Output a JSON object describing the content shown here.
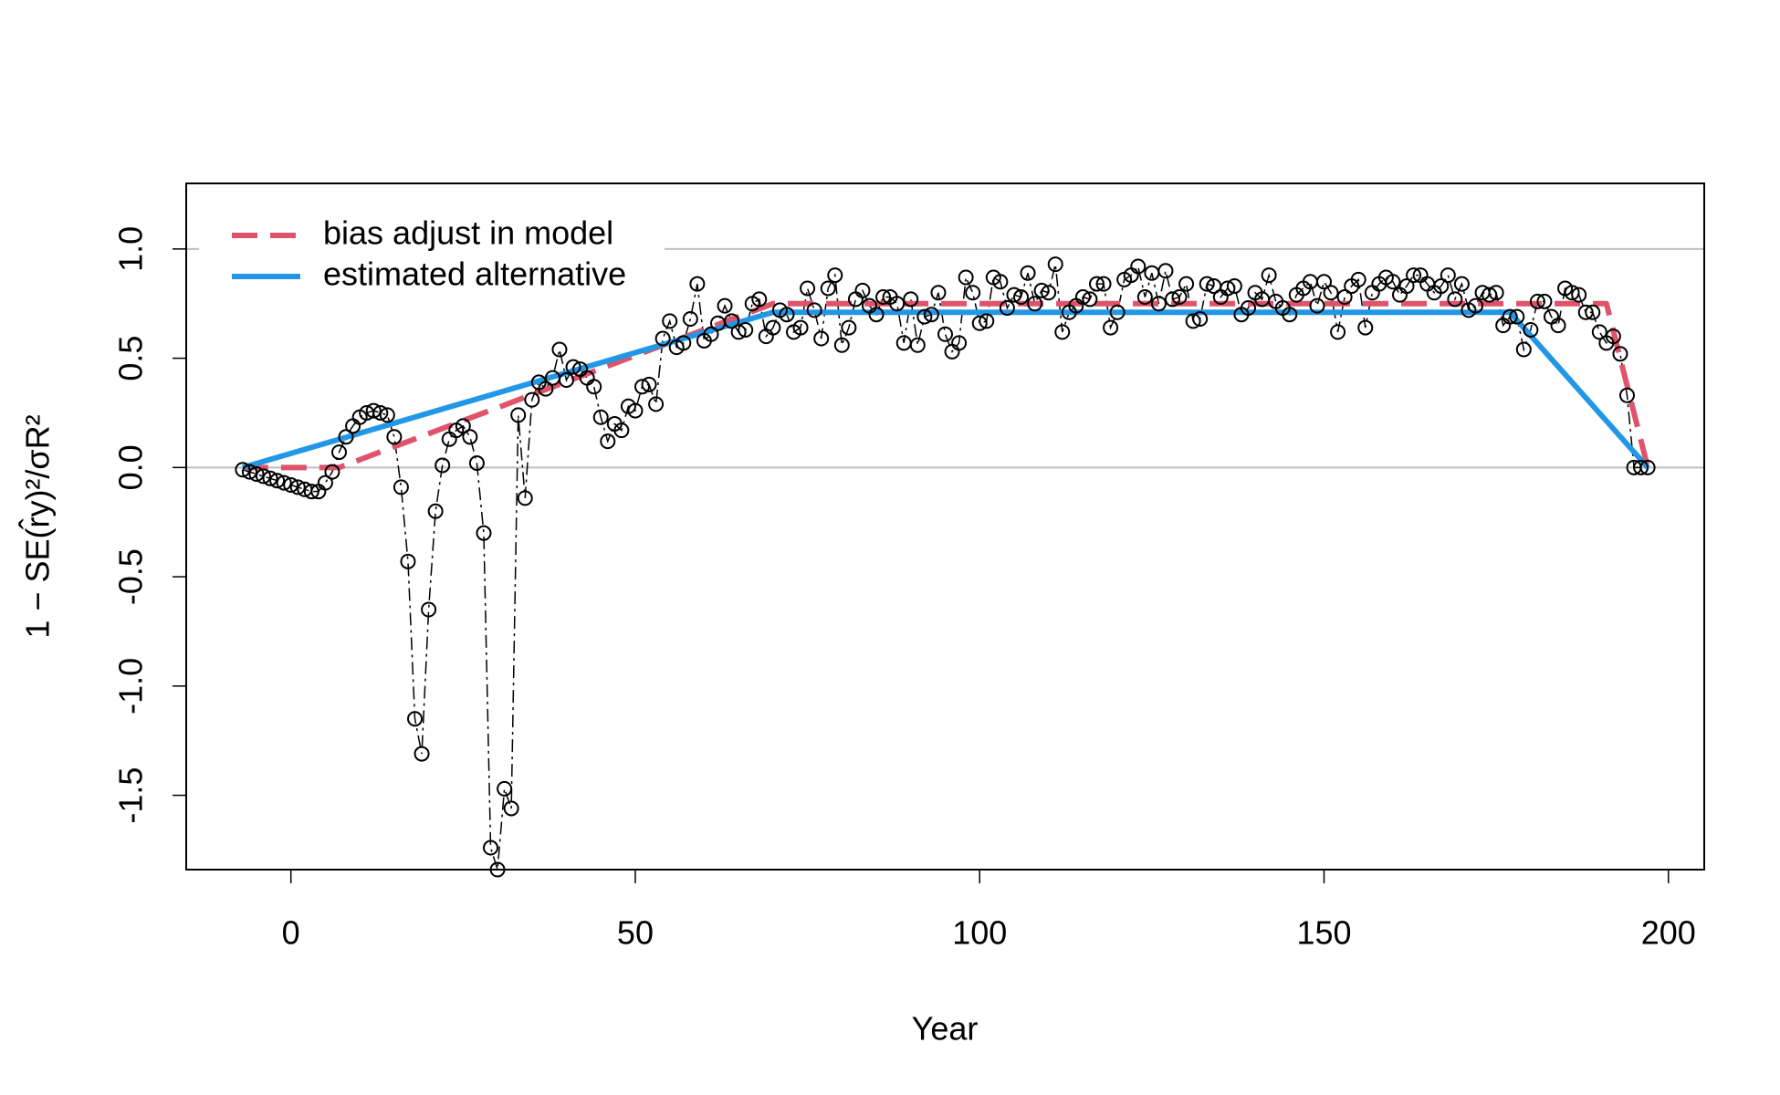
{
  "chart_data": {
    "type": "scatter",
    "xlabel": "Year",
    "ylabel": "1 − SE(r̂y)²/σR²",
    "xlim": [
      -15.2,
      205.2
    ],
    "ylim": [
      -1.84,
      1.3
    ],
    "xticks": [
      0,
      50,
      100,
      150,
      200
    ],
    "yticks": [
      {
        "value": -1.5,
        "label": "-1.5"
      },
      {
        "value": -1,
        "label": "-1.0"
      },
      {
        "value": -0.5,
        "label": "-0.5"
      },
      {
        "value": 0,
        "label": "0.0"
      },
      {
        "value": 0.5,
        "label": "0.5"
      },
      {
        "value": 1,
        "label": "1.0"
      }
    ],
    "hlines": [
      0,
      1
    ],
    "legend": "topleft",
    "points": {
      "color": "#000000",
      "x": [
        -7,
        -6,
        -5,
        -4,
        -3,
        -2,
        -1,
        0,
        1,
        2,
        3,
        4,
        5,
        6,
        7,
        8,
        9,
        10,
        11,
        12,
        13,
        14,
        15,
        16,
        17,
        18,
        19,
        20,
        21,
        22,
        23,
        24,
        25,
        26,
        27,
        28,
        29,
        30,
        31,
        32,
        33,
        34,
        35,
        36,
        37,
        38,
        39,
        40,
        41,
        42,
        43,
        44,
        45,
        46,
        47,
        48,
        49,
        50,
        51,
        52,
        53,
        54,
        55,
        56,
        57,
        58,
        59,
        60,
        61,
        62,
        63,
        64,
        65,
        66,
        67,
        68,
        69,
        70,
        71,
        72,
        73,
        74,
        75,
        76,
        77,
        78,
        79,
        80,
        81,
        82,
        83,
        84,
        85,
        86,
        87,
        88,
        89,
        90,
        91,
        92,
        93,
        94,
        95,
        96,
        97,
        98,
        99,
        100,
        101,
        102,
        103,
        104,
        105,
        106,
        107,
        108,
        109,
        110,
        111,
        112,
        113,
        114,
        115,
        116,
        117,
        118,
        119,
        120,
        121,
        122,
        123,
        124,
        125,
        126,
        127,
        128,
        129,
        130,
        131,
        132,
        133,
        134,
        135,
        136,
        137,
        138,
        139,
        140,
        141,
        142,
        143,
        144,
        145,
        146,
        147,
        148,
        149,
        150,
        151,
        152,
        153,
        154,
        155,
        156,
        157,
        158,
        159,
        160,
        161,
        162,
        163,
        164,
        165,
        166,
        167,
        168,
        169,
        170,
        171,
        172,
        173,
        174,
        175,
        176,
        177,
        178,
        179,
        180,
        181,
        182,
        183,
        184,
        185,
        186,
        187,
        188,
        189,
        190,
        191,
        192,
        193,
        194,
        195,
        196,
        197
      ],
      "y": [
        -0.01,
        -0.02,
        -0.03,
        -0.04,
        -0.05,
        -0.06,
        -0.07,
        -0.08,
        -0.09,
        -0.1,
        -0.11,
        -0.11,
        -0.07,
        -0.02,
        0.07,
        0.14,
        0.19,
        0.23,
        0.25,
        0.26,
        0.25,
        0.24,
        0.14,
        -0.09,
        -0.43,
        -1.15,
        -1.31,
        -0.65,
        -0.2,
        0.01,
        0.13,
        0.17,
        0.19,
        0.14,
        0.02,
        -0.3,
        -1.74,
        -1.84,
        -1.47,
        -1.56,
        0.24,
        -0.14,
        0.31,
        0.39,
        0.36,
        0.41,
        0.54,
        0.4,
        0.46,
        0.45,
        0.41,
        0.37,
        0.23,
        0.12,
        0.2,
        0.17,
        0.28,
        0.26,
        0.37,
        0.38,
        0.29,
        0.59,
        0.67,
        0.55,
        0.57,
        0.68,
        0.84,
        0.58,
        0.61,
        0.66,
        0.74,
        0.67,
        0.62,
        0.63,
        0.75,
        0.77,
        0.6,
        0.64,
        0.72,
        0.7,
        0.62,
        0.64,
        0.82,
        0.72,
        0.59,
        0.82,
        0.88,
        0.56,
        0.64,
        0.77,
        0.81,
        0.74,
        0.7,
        0.78,
        0.78,
        0.75,
        0.57,
        0.77,
        0.56,
        0.69,
        0.7,
        0.8,
        0.61,
        0.53,
        0.57,
        0.87,
        0.8,
        0.66,
        0.67,
        0.87,
        0.85,
        0.73,
        0.79,
        0.78,
        0.89,
        0.75,
        0.81,
        0.8,
        0.93,
        0.62,
        0.71,
        0.74,
        0.78,
        0.77,
        0.84,
        0.84,
        0.64,
        0.71,
        0.86,
        0.88,
        0.92,
        0.78,
        0.89,
        0.75,
        0.9,
        0.77,
        0.78,
        0.84,
        0.67,
        0.68,
        0.84,
        0.83,
        0.78,
        0.82,
        0.83,
        0.7,
        0.73,
        0.8,
        0.77,
        0.88,
        0.76,
        0.73,
        0.7,
        0.79,
        0.82,
        0.85,
        0.74,
        0.85,
        0.8,
        0.62,
        0.78,
        0.83,
        0.86,
        0.64,
        0.8,
        0.84,
        0.87,
        0.85,
        0.79,
        0.83,
        0.88,
        0.88,
        0.84,
        0.8,
        0.83,
        0.88,
        0.77,
        0.84,
        0.72,
        0.74,
        0.8,
        0.79,
        0.8,
        0.65,
        0.69,
        0.69,
        0.54,
        0.63,
        0.76,
        0.76,
        0.69,
        0.65,
        0.82,
        0.8,
        0.79,
        0.71,
        0.71,
        0.62,
        0.57,
        0.6,
        0.52,
        0.33,
        0.0,
        0.0,
        0.0
      ]
    },
    "series": [
      {
        "name": "bias adjust in model",
        "color": "#df536b",
        "dashed": true,
        "x": [
          -7,
          7,
          70,
          191,
          197
        ],
        "values": [
          0,
          0,
          0.75,
          0.75,
          0
        ]
      },
      {
        "name": "estimated alternative",
        "color": "#2297e6",
        "dashed": false,
        "x": [
          -7,
          70,
          177,
          197
        ],
        "values": [
          0,
          0.71,
          0.71,
          0
        ]
      }
    ]
  }
}
